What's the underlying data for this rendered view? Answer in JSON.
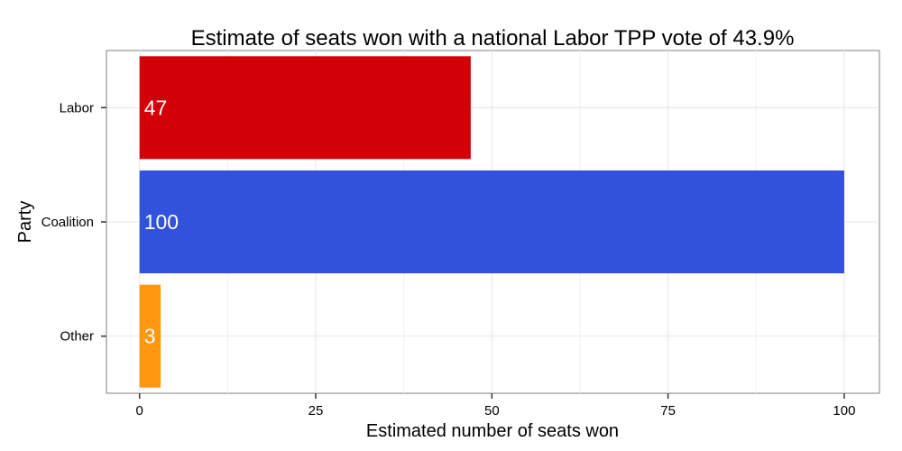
{
  "chart_data": {
    "type": "bar",
    "orientation": "horizontal",
    "title": "Estimate of seats won with a national Labor TPP vote of 43.9%",
    "xlabel": "Estimated number of seats won",
    "ylabel": "Party",
    "categories": [
      "Labor",
      "Coalition",
      "Other"
    ],
    "values": [
      47,
      100,
      3
    ],
    "colors": [
      "#d40008",
      "#3352dc",
      "#ff9810"
    ],
    "xlim": [
      -4.7,
      105
    ],
    "xticks": [
      0,
      25,
      50,
      75,
      100
    ],
    "grid": true,
    "legend": "none"
  }
}
